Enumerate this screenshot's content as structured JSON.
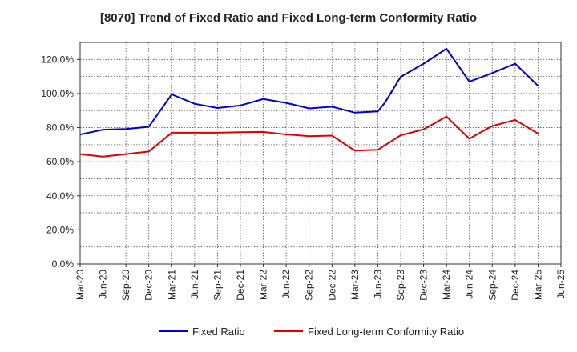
{
  "chart_data": {
    "type": "line",
    "title": "[8070]  Trend of Fixed Ratio and Fixed Long-term Conformity Ratio",
    "xlabel": "",
    "ylabel": "",
    "ylim": [
      0,
      130
    ],
    "yticks": [
      "0.0%",
      "20.0%",
      "40.0%",
      "60.0%",
      "80.0%",
      "100.0%",
      "120.0%"
    ],
    "ytick_values": [
      0,
      20,
      40,
      60,
      80,
      100,
      120
    ],
    "x_tick_labels": [
      "Mar-20",
      "Jun-20",
      "Sep-20",
      "Dec-20",
      "Mar-21",
      "Jun-21",
      "Sep-21",
      "Dec-21",
      "Mar-22",
      "Jun-22",
      "Sep-22",
      "Dec-22",
      "Mar-23",
      "Jun-23",
      "Sep-23",
      "Dec-23",
      "Mar-24",
      "Jun-24",
      "Sep-24",
      "Dec-24",
      "Mar-25",
      "Jun-25"
    ],
    "grid": true,
    "legend_position": "bottom",
    "series": [
      {
        "name": "Fixed Ratio",
        "color": "#0000cc",
        "x": [
          "Mar-20",
          "Jun-20",
          "Sep-20",
          "Dec-20",
          "Mar-21",
          "Jun-21",
          "Sep-21",
          "Dec-21",
          "Mar-22",
          "Jun-22",
          "Sep-22",
          "Dec-22",
          "Mar-23",
          "Jun-23",
          "Jul-23",
          "Sep-23",
          "Dec-23",
          "Mar-24",
          "Jun-24",
          "Sep-24",
          "Dec-24",
          "Mar-25"
        ],
        "x_index": [
          0,
          1,
          2,
          3,
          4,
          5,
          6,
          7,
          8,
          9,
          10,
          11,
          12,
          13,
          13.33,
          14,
          15,
          16,
          17,
          18,
          19,
          20
        ],
        "values": [
          76.0,
          78.8,
          79.2,
          80.5,
          99.5,
          94.0,
          91.5,
          93.0,
          96.8,
          94.5,
          91.3,
          92.3,
          88.8,
          89.5,
          95.0,
          109.8,
          117.5,
          126.3,
          107.0,
          112.0,
          117.5,
          104.5
        ]
      },
      {
        "name": "Fixed Long-term Conformity Ratio",
        "color": "#dd0000",
        "x": [
          "Mar-20",
          "Jun-20",
          "Sep-20",
          "Dec-20",
          "Mar-21",
          "Jun-21",
          "Sep-21",
          "Dec-21",
          "Mar-22",
          "Jun-22",
          "Sep-22",
          "Dec-22",
          "Mar-23",
          "Jun-23",
          "Sep-23",
          "Dec-23",
          "Mar-24",
          "Jun-24",
          "Sep-24",
          "Dec-24",
          "Mar-25"
        ],
        "x_index": [
          0,
          1,
          2,
          3,
          4,
          5,
          6,
          7,
          8,
          9,
          10,
          11,
          12,
          13,
          14,
          15,
          16,
          17,
          18,
          19,
          20
        ],
        "values": [
          64.5,
          63.0,
          64.5,
          66.0,
          77.0,
          77.0,
          77.0,
          77.3,
          77.5,
          76.0,
          75.0,
          75.3,
          66.5,
          67.0,
          75.5,
          79.0,
          86.5,
          73.5,
          81.0,
          84.5,
          76.5
        ]
      }
    ]
  }
}
